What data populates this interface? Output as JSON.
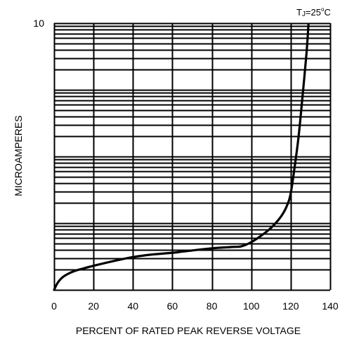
{
  "chart_data": {
    "type": "line",
    "annotation": "TJ=25°C",
    "annotation_parts": {
      "prefix": "T",
      "subscript": "J",
      "value": "=25",
      "degree": "o",
      "unit": "C"
    },
    "xlabel": "PERCENT OF RATED PEAK REVERSE VOLTAGE",
    "ylabel": "MICROAMPERES",
    "xlim": [
      0,
      140
    ],
    "x_ticks": [
      0,
      20,
      40,
      60,
      80,
      100,
      120,
      140
    ],
    "x_tick_labels": [
      "0",
      "20",
      "40",
      "60",
      "80",
      "100",
      "120",
      "140"
    ],
    "y_scale": "log",
    "ylim": [
      0.001,
      10
    ],
    "y_tick_labels": [
      {
        "value": 10,
        "label": "10"
      }
    ],
    "grid": true,
    "series": [
      {
        "x": [
          0,
          2,
          5,
          10,
          15,
          20,
          30,
          40,
          50,
          60,
          70,
          80,
          90,
          95,
          100,
          105,
          110,
          115,
          118,
          120,
          122,
          124,
          126,
          128,
          129
        ],
        "y": [
          0.001,
          0.0013,
          0.0016,
          0.0019,
          0.0021,
          0.0023,
          0.0027,
          0.0031,
          0.0034,
          0.0036,
          0.0039,
          0.0042,
          0.0044,
          0.0045,
          0.0052,
          0.0065,
          0.0085,
          0.0125,
          0.018,
          0.028,
          0.07,
          0.2,
          0.8,
          3.5,
          9.5
        ]
      }
    ]
  }
}
